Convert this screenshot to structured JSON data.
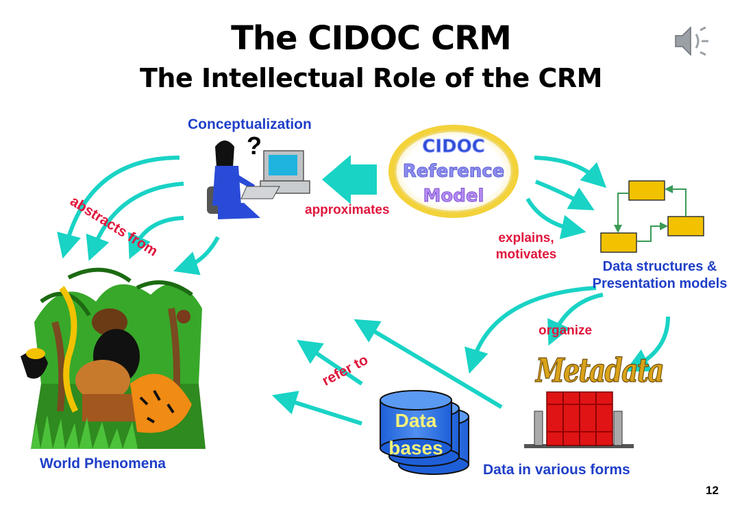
{
  "title": "The CIDOC CRM",
  "subtitle": "The Intellectual Role of the CRM",
  "nodes": {
    "conceptualization": "Conceptualization",
    "world": "World Phenomena",
    "data_structures": "Data structures & Presentation models",
    "data_forms": "Data in various forms",
    "metadata": "Metadata",
    "databases": "Data bases",
    "crm_lines": [
      "CIDOC",
      "Reference",
      "Model"
    ]
  },
  "relations": {
    "abstracts": "abstracts from",
    "approximates": "approximates",
    "explains": "explains, motivates",
    "organize": "organize",
    "refer": "refer to"
  },
  "question_mark": "?",
  "page_number": "12",
  "colors": {
    "arrow": "#19d3c5",
    "label_red": "#e0163c",
    "label_blue": "#1f3fc8",
    "box_yellow": "#f2c200"
  },
  "icons": [
    "speaker-icon",
    "person-computer-icon",
    "jungle-scene-icon",
    "database-icon",
    "bookshelf-icon"
  ]
}
